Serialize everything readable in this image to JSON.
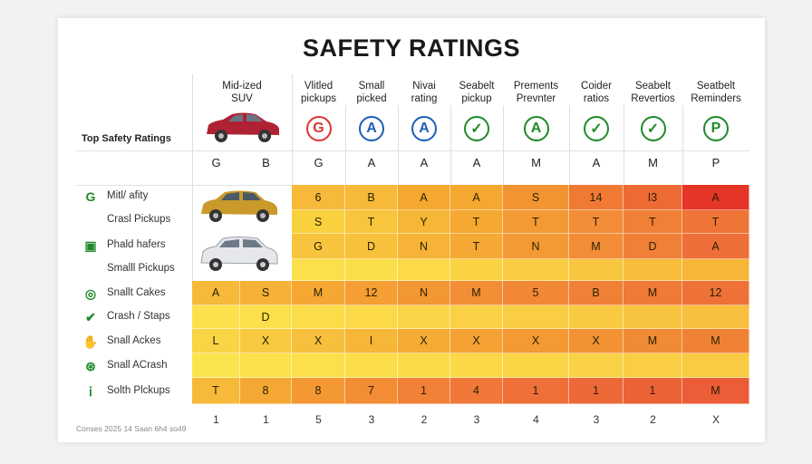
{
  "title": "SAFETY RATINGS",
  "top_label": "Top Safety Ratings",
  "footnote": "Conses 2025 14 Saan 6h4 so49",
  "columns": [
    {
      "label": "Mid-ized\nSUV"
    },
    {
      "label": ""
    },
    {
      "label": "Vlitled\npickups",
      "icon": "G",
      "icon_name": "no-entry-icon",
      "icon_color": "#d33"
    },
    {
      "label": "Small\npicked",
      "icon": "A",
      "icon_name": "a-circle-icon",
      "icon_color": "#1d5fb8"
    },
    {
      "label": "Nivai\nrating",
      "icon": "A",
      "icon_name": "a-circle-icon",
      "icon_color": "#1d5fb8"
    },
    {
      "label": "Seabelt\npickup",
      "icon": "✓",
      "icon_name": "check-leaf-icon",
      "icon_color": "#1f8a2a"
    },
    {
      "label": "Prements\nPrevnter",
      "icon": "A",
      "icon_name": "a-circle-icon",
      "icon_color": "#1f8a2a"
    },
    {
      "label": "Coider\nratios",
      "icon": "✓",
      "icon_name": "check-leaf-icon",
      "icon_color": "#1f8a2a"
    },
    {
      "label": "Seabelt\nRevertios",
      "icon": "✓",
      "icon_name": "check-circle-icon",
      "icon_color": "#1f8a2a"
    },
    {
      "label": "Seatbelt\nReminders",
      "icon": "P",
      "icon_name": "p-circle-icon",
      "icon_color": "#1f8a2a"
    }
  ],
  "grades": [
    "G",
    "B",
    "G",
    "A",
    "A",
    "A",
    "M",
    "A",
    "M",
    "P"
  ],
  "rows": [
    {
      "label": "Mitl/ afity",
      "icon": "G",
      "icon_name": "g-letter-icon"
    },
    {
      "label": "Crasl Pickups",
      "icon": "",
      "icon_name": ""
    },
    {
      "label": "Phald hafers",
      "icon": "▣",
      "icon_name": "map-icon"
    },
    {
      "label": "Smalll Pickups",
      "icon": "",
      "icon_name": ""
    },
    {
      "label": "Snallt Cakes",
      "icon": "◎",
      "icon_name": "gauge-icon"
    },
    {
      "label": "Crash / Staps",
      "icon": "✔",
      "icon_name": "check-icon"
    },
    {
      "label": "Snall Ackes",
      "icon": "✋",
      "icon_name": "hand-icon"
    },
    {
      "label": "Snall ACrash",
      "icon": "⊛",
      "icon_name": "shield-icon"
    },
    {
      "label": "Solth Plckups",
      "icon": "ⅰ",
      "icon_name": "info-icon"
    }
  ],
  "chart_data": {
    "type": "heatmap",
    "title": "SAFETY RATINGS",
    "column_labels": [
      "Mid-ized SUV",
      "",
      "Vlitled pickups",
      "Small picked",
      "Nivai rating",
      "Seabelt pickup",
      "Prements Prevnter",
      "Coider ratios",
      "Seabelt Revertios",
      "Seatbelt Reminders"
    ],
    "row_labels": [
      "Mitl/ afity",
      "Crasl Pickups",
      "Phald hafers",
      "Smalll Pickups",
      "Snallt Cakes",
      "Crash / Staps",
      "Snall Ackes",
      "Snall ACrash",
      "Solth Plckups"
    ],
    "cells": [
      [
        "",
        "",
        "6",
        "B",
        "A",
        "A",
        "S",
        "14",
        "I3",
        "A"
      ],
      [
        "",
        "",
        "S",
        "T",
        "Y",
        "T",
        "T",
        "T",
        "T",
        "T"
      ],
      [
        "",
        "",
        "G",
        "D",
        "N",
        "T",
        "N",
        "M",
        "D",
        "A"
      ],
      [
        "",
        "",
        "",
        "",
        "",
        "",
        "",
        "",
        "",
        ""
      ],
      [
        "A",
        "S",
        "M",
        "12",
        "N",
        "M",
        "5",
        "B",
        "M",
        "12"
      ],
      [
        "",
        "D",
        "",
        "",
        "",
        "",
        "",
        "",
        "",
        ""
      ],
      [
        "L",
        "X",
        "X",
        "I",
        "X",
        "X",
        "X",
        "X",
        "M",
        "M"
      ],
      [
        "",
        "",
        "",
        "",
        "",
        "",
        "",
        "",
        "",
        ""
      ],
      [
        "T",
        "8",
        "8",
        "7",
        "1",
        "4",
        "1",
        "1",
        "1",
        "M"
      ]
    ],
    "colors": [
      [
        "",
        "",
        "#f7b93a",
        "#f7b93a",
        "#f5a830",
        "#f5a830",
        "#f39433",
        "#f07a33",
        "#ee6a35",
        "#e53527"
      ],
      [
        "",
        "",
        "#f9d13f",
        "#f8c53c",
        "#f6b737",
        "#f5a832",
        "#f39a34",
        "#f28c36",
        "#f08036",
        "#ef7536"
      ],
      [
        "",
        "",
        "#f8c43d",
        "#f8c13c",
        "#f6b337",
        "#f5a833",
        "#f39a34",
        "#f28c36",
        "#f08036",
        "#ee6e37"
      ],
      [
        "",
        "",
        "#fbe04b",
        "#fbdf4a",
        "#fbd949",
        "#fad345",
        "#f9cd42",
        "#f8c53f",
        "#f7bd3b",
        "#f6b638"
      ],
      [
        "#f7b93a",
        "#f6b137",
        "#f5a734",
        "#f49e34",
        "#f39634",
        "#f28e35",
        "#f18836",
        "#f08036",
        "#ef7936",
        "#ee7237"
      ],
      [
        "#fbe24c",
        "#fbe04b",
        "#fbdd4a",
        "#fbd949",
        "#fad547",
        "#fad146",
        "#f9cd44",
        "#f9c942",
        "#f8c440",
        "#f8c03e"
      ],
      [
        "#f9d444",
        "#f8ca40",
        "#f7c03c",
        "#f6b638",
        "#f5ac35",
        "#f4a234",
        "#f39a34",
        "#f29234",
        "#f18a35",
        "#f08236"
      ],
      [
        "#fbe44e",
        "#fbe24c",
        "#fbe04b",
        "#fbdd4a",
        "#fbdb49",
        "#fad848",
        "#fad546",
        "#fad245",
        "#f9ce44",
        "#f9ca42"
      ],
      [
        "#f7b93a",
        "#f5a734",
        "#f49834",
        "#f28c35",
        "#f18136",
        "#ef7737",
        "#ee6f37",
        "#ed6837",
        "#ec6237",
        "#eb5c37"
      ]
    ],
    "footer_values": [
      "1",
      "1",
      "5",
      "3",
      "2",
      "3",
      "4",
      "3",
      "2",
      "X"
    ]
  }
}
